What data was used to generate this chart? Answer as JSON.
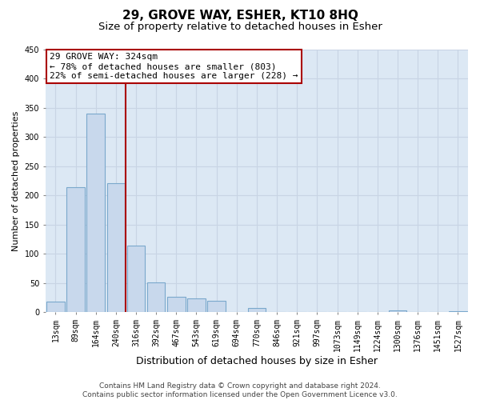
{
  "title": "29, GROVE WAY, ESHER, KT10 8HQ",
  "subtitle": "Size of property relative to detached houses in Esher",
  "xlabel": "Distribution of detached houses by size in Esher",
  "ylabel": "Number of detached properties",
  "bar_labels": [
    "13sqm",
    "89sqm",
    "164sqm",
    "240sqm",
    "316sqm",
    "392sqm",
    "467sqm",
    "543sqm",
    "619sqm",
    "694sqm",
    "770sqm",
    "846sqm",
    "921sqm",
    "997sqm",
    "1073sqm",
    "1149sqm",
    "1224sqm",
    "1300sqm",
    "1376sqm",
    "1451sqm",
    "1527sqm"
  ],
  "bar_values": [
    18,
    214,
    340,
    220,
    114,
    51,
    26,
    24,
    19,
    0,
    7,
    0,
    0,
    0,
    0,
    0,
    0,
    3,
    0,
    0,
    2
  ],
  "bar_color": "#c8d8ec",
  "bar_edge_color": "#7aa8cc",
  "vline_x_idx": 4,
  "vline_color": "#aa0000",
  "annotation_line1": "29 GROVE WAY: 324sqm",
  "annotation_line2": "← 78% of detached houses are smaller (803)",
  "annotation_line3": "22% of semi-detached houses are larger (228) →",
  "annotation_box_color": "#ffffff",
  "annotation_box_edge_color": "#aa0000",
  "ylim": [
    0,
    450
  ],
  "yticks": [
    0,
    50,
    100,
    150,
    200,
    250,
    300,
    350,
    400,
    450
  ],
  "grid_color": "#c8d4e4",
  "background_color": "#dce8f4",
  "footer_line1": "Contains HM Land Registry data © Crown copyright and database right 2024.",
  "footer_line2": "Contains public sector information licensed under the Open Government Licence v3.0.",
  "title_fontsize": 11,
  "subtitle_fontsize": 9.5,
  "xlabel_fontsize": 9,
  "ylabel_fontsize": 8,
  "tick_fontsize": 7,
  "footer_fontsize": 6.5
}
